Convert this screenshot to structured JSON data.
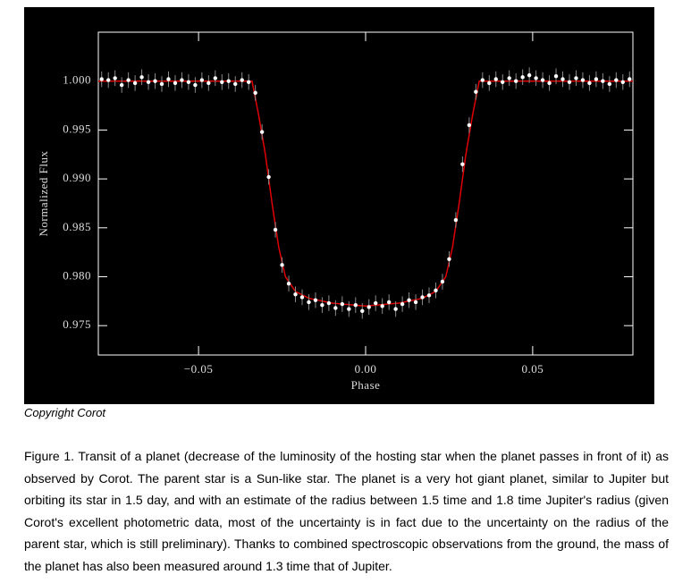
{
  "chart_data": {
    "type": "scatter",
    "xlabel": "Phase",
    "ylabel": "Normalized Flux",
    "xlim": [
      -0.08,
      0.08
    ],
    "ylim": [
      0.972,
      1.005
    ],
    "xticks": [
      {
        "value": -0.05,
        "label": "−0.05"
      },
      {
        "value": 0,
        "label": "0.00"
      },
      0.05
    ],
    "yticks": [
      {
        "value": 0.975,
        "label": "0.975"
      },
      {
        "value": 0.98,
        "label": "0.980"
      },
      {
        "value": 0.985,
        "label": "0.985"
      },
      {
        "value": 0.99,
        "label": "0.990"
      },
      {
        "value": 0.995,
        "label": "0.995"
      },
      {
        "value": 1,
        "label": "1.000"
      }
    ],
    "background": "#000000",
    "axis_color": "#ffffff",
    "series": [
      {
        "type": "scatter",
        "color": "#ffffff",
        "error": 0.0008,
        "error_color": "#8a8a8a",
        "x": [
          -0.079,
          -0.077,
          -0.075,
          -0.073,
          -0.071,
          -0.069,
          -0.067,
          -0.065,
          -0.063,
          -0.061,
          -0.059,
          -0.057,
          -0.055,
          -0.053,
          -0.051,
          -0.049,
          -0.047,
          -0.045,
          -0.043,
          -0.041,
          -0.039,
          -0.037,
          -0.035,
          -0.033,
          -0.031,
          -0.029,
          -0.027,
          -0.025,
          -0.023,
          -0.021,
          -0.019,
          -0.017,
          -0.015,
          -0.013,
          -0.011,
          -0.009,
          -0.007,
          -0.005,
          -0.003,
          -0.001,
          0.001,
          0.003,
          0.005,
          0.007,
          0.009,
          0.011,
          0.013,
          0.015,
          0.017,
          0.019,
          0.021,
          0.023,
          0.025,
          0.027,
          0.029,
          0.031,
          0.033,
          0.035,
          0.037,
          0.039,
          0.041,
          0.043,
          0.045,
          0.047,
          0.049,
          0.051,
          0.053,
          0.055,
          0.057,
          0.059,
          0.061,
          0.063,
          0.065,
          0.067,
          0.069,
          0.071,
          0.073,
          0.075,
          0.077,
          0.079
        ],
        "values": [
          1.0002,
          1.0001,
          1.0003,
          0.9996,
          1.0001,
          0.9998,
          1.0004,
          0.9999,
          1.0,
          0.9997,
          1.0002,
          0.9998,
          1.0001,
          0.9999,
          0.9996,
          1.0001,
          0.9998,
          1.0003,
          0.9999,
          1.0,
          0.9997,
          1.0001,
          0.9999,
          0.9988,
          0.9948,
          0.9902,
          0.9848,
          0.9812,
          0.9793,
          0.9782,
          0.9779,
          0.9774,
          0.9776,
          0.9771,
          0.9773,
          0.9768,
          0.9772,
          0.9767,
          0.9771,
          0.9765,
          0.9769,
          0.9773,
          0.977,
          0.9774,
          0.9767,
          0.9772,
          0.9776,
          0.9774,
          0.9779,
          0.9781,
          0.9786,
          0.9795,
          0.9818,
          0.9858,
          0.9915,
          0.9955,
          0.9989,
          1.0001,
          0.9998,
          1.0002,
          0.9999,
          1.0003,
          1.0,
          1.0004,
          1.0006,
          1.0003,
          1.0001,
          0.9998,
          1.0005,
          1.0002,
          0.9999,
          1.0003,
          1.0001,
          0.9998,
          1.0002,
          1.0,
          0.9997,
          1.0001,
          0.9999,
          1.0002
        ]
      },
      {
        "type": "line",
        "color": "#e00000",
        "x": [
          -0.08,
          -0.034,
          -0.032,
          -0.03,
          -0.028,
          -0.026,
          -0.024,
          -0.021,
          -0.017,
          -0.01,
          0,
          0.01,
          0.017,
          0.021,
          0.024,
          0.026,
          0.028,
          0.03,
          0.032,
          0.034,
          0.08
        ],
        "values": [
          1.0,
          1.0,
          0.9965,
          0.9925,
          0.9875,
          0.983,
          0.98,
          0.9785,
          0.9778,
          0.9773,
          0.977,
          0.9773,
          0.9778,
          0.9785,
          0.98,
          0.983,
          0.9875,
          0.9925,
          0.9965,
          1.0,
          1.0
        ]
      }
    ]
  },
  "copyright": "Copyright Corot",
  "caption": "Figure 1. Transit of a planet (decrease of the luminosity of the hosting star when the planet passes in front of it) as observed by Corot. The parent star is a Sun-like star. The planet is a very hot giant planet, similar to Jupiter but orbiting its star in 1.5 day, and with an estimate of the radius between 1.5 time and 1.8 time Jupiter's radius (given Corot's excellent photometric data, most of the uncertainty is in fact due to the uncertainty on the radius of the parent star, which is still preliminary). Thanks to combined spectroscopic observations from the ground, the mass of the planet has also been measured around 1.3 time that of Jupiter."
}
